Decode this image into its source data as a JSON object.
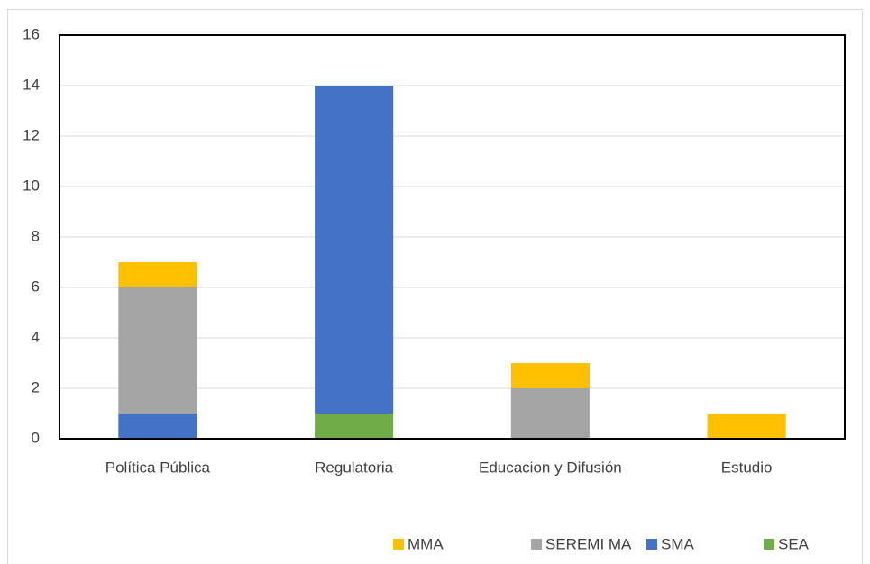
{
  "chart_data": {
    "type": "stacked_bar",
    "categories": [
      "Política Pública",
      "Regulatoria",
      "Educacion y Difusión",
      "Estudio"
    ],
    "series": [
      {
        "name": "MMA",
        "color": "#ffc000",
        "values": [
          1,
          0,
          1,
          1
        ]
      },
      {
        "name": "SEREMI MA",
        "color": "#a5a5a5",
        "values": [
          5,
          0,
          2,
          0
        ]
      },
      {
        "name": "SMA",
        "color": "#4472c4",
        "values": [
          1,
          13,
          0,
          0
        ]
      },
      {
        "name": "SEA",
        "color": "#70ad47",
        "values": [
          0,
          1,
          0,
          0
        ]
      }
    ],
    "ylim": [
      0,
      16
    ],
    "yticks": [
      0,
      2,
      4,
      6,
      8,
      10,
      12,
      14,
      16
    ],
    "grid": true,
    "legend": "bottom"
  }
}
